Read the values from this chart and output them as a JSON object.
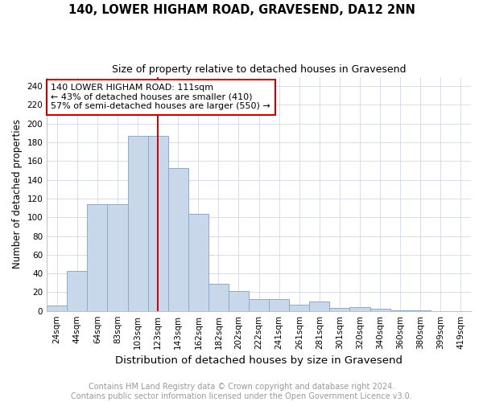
{
  "title1": "140, LOWER HIGHAM ROAD, GRAVESEND, DA12 2NN",
  "title2": "Size of property relative to detached houses in Gravesend",
  "xlabel": "Distribution of detached houses by size in Gravesend",
  "ylabel": "Number of detached properties",
  "categories": [
    "24sqm",
    "44sqm",
    "64sqm",
    "83sqm",
    "103sqm",
    "123sqm",
    "143sqm",
    "162sqm",
    "182sqm",
    "202sqm",
    "222sqm",
    "241sqm",
    "261sqm",
    "281sqm",
    "301sqm",
    "320sqm",
    "340sqm",
    "360sqm",
    "380sqm",
    "399sqm",
    "419sqm"
  ],
  "values": [
    6,
    43,
    114,
    114,
    187,
    187,
    153,
    104,
    29,
    21,
    13,
    13,
    7,
    10,
    3,
    4,
    2,
    1,
    1,
    0,
    0
  ],
  "bar_color": "#c8d8ea",
  "bar_edgecolor": "#8aaac8",
  "bar_linewidth": 0.7,
  "vline_x": 5.0,
  "vline_color": "#cc0000",
  "vline_linewidth": 1.4,
  "annotation_text": "140 LOWER HIGHAM ROAD: 111sqm\n← 43% of detached houses are smaller (410)\n57% of semi-detached houses are larger (550) →",
  "annotation_box_edgecolor": "#cc0000",
  "annotation_box_facecolor": "#ffffff",
  "annotation_fontsize": 8,
  "ylim": [
    0,
    250
  ],
  "yticks": [
    0,
    20,
    40,
    60,
    80,
    100,
    120,
    140,
    160,
    180,
    200,
    220,
    240
  ],
  "grid_color": "#d0d8e8",
  "footer_text": "Contains HM Land Registry data © Crown copyright and database right 2024.\nContains public sector information licensed under the Open Government Licence v3.0.",
  "footer_fontsize": 7,
  "footer_color": "#999999",
  "title1_fontsize": 10.5,
  "title2_fontsize": 9,
  "xlabel_fontsize": 9.5,
  "ylabel_fontsize": 8.5,
  "tick_fontsize": 7.5
}
